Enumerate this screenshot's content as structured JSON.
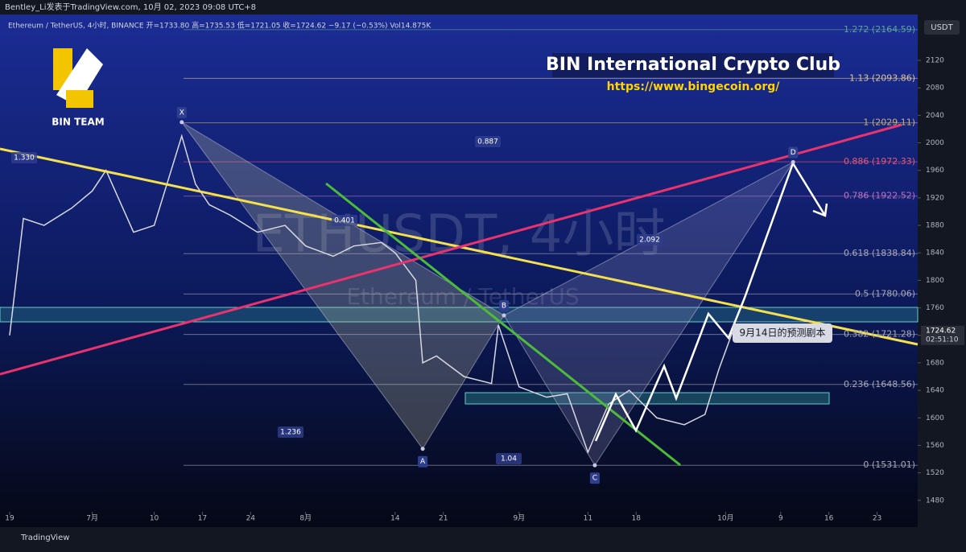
{
  "header": {
    "publisher": "Bentley_Li发表于TradingView.com, 10月 02, 2023 09:08 UTC+8",
    "symbol_line": "Ethereum / TetherUS, 4小时, BINANCE  开=1733.80  高=1735.53  低=1721.05  收=1724.62  −9.17 (−0.53%)  Vol14.875K",
    "currency": "USDT"
  },
  "branding": {
    "team": "BIN TEAM",
    "club": "BIN International Crypto Club",
    "url": "https://www.bingecoin.org/",
    "watermark": "ETHUSDT, 4小时",
    "watermark_sub": "Ethereum / TetherUS"
  },
  "callout": "9月14日的预测剧本",
  "current_price": {
    "value": 1724.62,
    "countdown": "02:51:10"
  },
  "footer": "TradingView",
  "chart_data": {
    "type": "line",
    "x": [
      0,
      2,
      5,
      9,
      12,
      14,
      18,
      21,
      25,
      27,
      29,
      32,
      36,
      40,
      43,
      47,
      50,
      54,
      56,
      59,
      60,
      62,
      66,
      70,
      71,
      74,
      78,
      81,
      84,
      87,
      90,
      94,
      98,
      101,
      103,
      105
    ],
    "series": [
      {
        "name": "ETHUSDT",
        "color": "#d8d8e0",
        "values": [
          1720,
          1890,
          1880,
          1905,
          1930,
          1960,
          1870,
          1880,
          2010,
          1940,
          1910,
          1895,
          1870,
          1880,
          1850,
          1835,
          1850,
          1855,
          1840,
          1800,
          1680,
          1690,
          1660,
          1650,
          1735,
          1645,
          1630,
          1635,
          1550,
          1620,
          1640,
          1600,
          1590,
          1605,
          1670,
          1725
        ]
      }
    ],
    "xlim": [
      -1.4,
      131.9
    ],
    "xticks": [
      {
        "value": 0,
        "label": "19"
      },
      {
        "value": 12,
        "label": "7月"
      },
      {
        "value": 21,
        "label": "10"
      },
      {
        "value": 28,
        "label": "17"
      },
      {
        "value": 35,
        "label": "24"
      },
      {
        "value": 43,
        "label": "8月"
      },
      {
        "value": 56,
        "label": "14"
      },
      {
        "value": 63,
        "label": "21"
      },
      {
        "value": 74,
        "label": "9月"
      },
      {
        "value": 84,
        "label": "11"
      },
      {
        "value": 91,
        "label": "18"
      },
      {
        "value": 104,
        "label": "10月"
      },
      {
        "value": 112,
        "label": "9"
      },
      {
        "value": 119,
        "label": "16"
      },
      {
        "value": 126,
        "label": "23"
      }
    ],
    "ylim": [
      1447,
      2175
    ],
    "yticks": [
      1480,
      1520,
      1560,
      1600,
      1640,
      1680,
      1720,
      1760,
      1800,
      1840,
      1880,
      1920,
      1960,
      2000,
      2040,
      2080,
      2120
    ],
    "fib_levels": [
      {
        "label": "1.272 (2164.59)",
        "value": 2164.59,
        "color": "#5fa39a"
      },
      {
        "label": "1.13 (2093.86)",
        "value": 2093.86,
        "color": "#d8c59a"
      },
      {
        "label": "1 (2029.11)",
        "value": 2029.11,
        "color": "#c8b078"
      },
      {
        "label": "0.886 (1972.33)",
        "value": 1972.33,
        "color": "#e05a7a"
      },
      {
        "label": "0.786 (1922.52)",
        "value": 1922.52,
        "color": "#c070c0"
      },
      {
        "label": "0.618 (1838.84)",
        "value": 1838.84,
        "color": "#a8a8b8"
      },
      {
        "label": "0.5 (1780.06)",
        "value": 1780.06,
        "color": "#a8a8b8"
      },
      {
        "label": "0.382 (1721.28)",
        "value": 1721.28,
        "color": "#a8a8b8"
      },
      {
        "label": "0.236 (1648.56)",
        "value": 1648.56,
        "color": "#a8a8b8"
      },
      {
        "label": "0 (1531.01)",
        "value": 1531.01,
        "color": "#a8a8b8"
      }
    ],
    "pattern_points": [
      {
        "label": "X",
        "x": 25,
        "value": 2030
      },
      {
        "label": "A",
        "x": 60,
        "value": 1555
      },
      {
        "label": "B",
        "x": 71.8,
        "value": 1749
      },
      {
        "label": "C",
        "x": 85,
        "value": 1531
      },
      {
        "label": "D",
        "x": 113.8,
        "value": 1972
      }
    ],
    "pattern_ratios": [
      {
        "value": 1.33,
        "label": "1.330"
      },
      0.401,
      0.887,
      1.236,
      2.092,
      1.04
    ]
  }
}
